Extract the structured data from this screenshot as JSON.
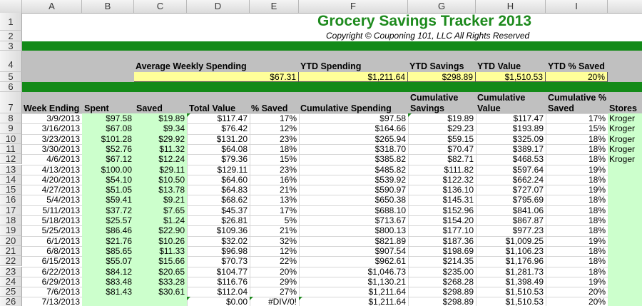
{
  "columns": [
    "A",
    "B",
    "C",
    "D",
    "E",
    "F",
    "G",
    "H",
    "I"
  ],
  "row_numbers": [
    "1",
    "2",
    "3",
    "4",
    "5",
    "6",
    "7",
    "8",
    "9",
    "10",
    "11",
    "12",
    "13",
    "14",
    "15",
    "16",
    "17",
    "18",
    "19",
    "20",
    "21",
    "22",
    "23",
    "24",
    "25",
    "26"
  ],
  "title": "Grocery Savings Tracker 2013",
  "copyright": "Copyright © Couponing 101, LLC All Rights Reserved",
  "summary": {
    "avg_weekly_label": "Average Weekly Spending",
    "avg_weekly_value": "$67.31",
    "ytd_spending_label": "YTD Spending",
    "ytd_spending_value": "$1,211.64",
    "ytd_savings_label": "YTD Savings",
    "ytd_savings_value": "$298.89",
    "ytd_value_label": "YTD Value",
    "ytd_value_value": "$1,510.53",
    "ytd_pct_label": "YTD % Saved",
    "ytd_pct_value": "20%"
  },
  "headers": {
    "week_ending": "Week Ending",
    "spent": "Spent",
    "saved": "Saved",
    "total_value": "Total Value",
    "pct_saved": "% Saved",
    "cum_spending": "Cumulative Spending",
    "cum_savings_1": "Cumulative",
    "cum_savings_2": "Savings",
    "cum_value_1": "Cumulative",
    "cum_value_2": "Value",
    "cum_pct_1": "Cumulative %",
    "cum_pct_2": "Saved",
    "stores": "Stores"
  },
  "rows": [
    [
      "3/9/2013",
      "$97.58",
      "$19.89",
      "$117.47",
      "17%",
      "$97.58",
      "$19.89",
      "$117.47",
      "17%",
      "Kroger"
    ],
    [
      "3/16/2013",
      "$67.08",
      "$9.34",
      "$76.42",
      "12%",
      "$164.66",
      "$29.23",
      "$193.89",
      "15%",
      "Kroger"
    ],
    [
      "3/23/2013",
      "$101.28",
      "$29.92",
      "$131.20",
      "23%",
      "$265.94",
      "$59.15",
      "$325.09",
      "18%",
      "Kroger"
    ],
    [
      "3/30/2013",
      "$52.76",
      "$11.32",
      "$64.08",
      "18%",
      "$318.70",
      "$70.47",
      "$389.17",
      "18%",
      "Kroger"
    ],
    [
      "4/6/2013",
      "$67.12",
      "$12.24",
      "$79.36",
      "15%",
      "$385.82",
      "$82.71",
      "$468.53",
      "18%",
      "Kroger"
    ],
    [
      "4/13/2013",
      "$100.00",
      "$29.11",
      "$129.11",
      "23%",
      "$485.82",
      "$111.82",
      "$597.64",
      "19%",
      ""
    ],
    [
      "4/20/2013",
      "$54.10",
      "$10.50",
      "$64.60",
      "16%",
      "$539.92",
      "$122.32",
      "$662.24",
      "18%",
      ""
    ],
    [
      "4/27/2013",
      "$51.05",
      "$13.78",
      "$64.83",
      "21%",
      "$590.97",
      "$136.10",
      "$727.07",
      "19%",
      ""
    ],
    [
      "5/4/2013",
      "$59.41",
      "$9.21",
      "$68.62",
      "13%",
      "$650.38",
      "$145.31",
      "$795.69",
      "18%",
      ""
    ],
    [
      "5/11/2013",
      "$37.72",
      "$7.65",
      "$45.37",
      "17%",
      "$688.10",
      "$152.96",
      "$841.06",
      "18%",
      ""
    ],
    [
      "5/18/2013",
      "$25.57",
      "$1.24",
      "$26.81",
      "5%",
      "$713.67",
      "$154.20",
      "$867.87",
      "18%",
      ""
    ],
    [
      "5/25/2013",
      "$86.46",
      "$22.90",
      "$109.36",
      "21%",
      "$800.13",
      "$177.10",
      "$977.23",
      "18%",
      ""
    ],
    [
      "6/1/2013",
      "$21.76",
      "$10.26",
      "$32.02",
      "32%",
      "$821.89",
      "$187.36",
      "$1,009.25",
      "19%",
      ""
    ],
    [
      "6/8/2013",
      "$85.65",
      "$11.33",
      "$96.98",
      "12%",
      "$907.54",
      "$198.69",
      "$1,106.23",
      "18%",
      ""
    ],
    [
      "6/15/2013",
      "$55.07",
      "$15.66",
      "$70.73",
      "22%",
      "$962.61",
      "$214.35",
      "$1,176.96",
      "18%",
      ""
    ],
    [
      "6/22/2013",
      "$84.12",
      "$20.65",
      "$104.77",
      "20%",
      "$1,046.73",
      "$235.00",
      "$1,281.73",
      "18%",
      ""
    ],
    [
      "6/29/2013",
      "$83.48",
      "$33.28",
      "$116.76",
      "29%",
      "$1,130.21",
      "$268.28",
      "$1,398.49",
      "19%",
      ""
    ],
    [
      "7/6/2013",
      "$81.43",
      "$30.61",
      "$112.04",
      "27%",
      "$1,211.64",
      "$298.89",
      "$1,510.53",
      "20%",
      ""
    ],
    [
      "7/13/2013",
      "",
      "",
      "$0.00",
      "#DIV/0!",
      "$1,211.64",
      "$298.89",
      "$1,510.53",
      "20%",
      ""
    ]
  ]
}
